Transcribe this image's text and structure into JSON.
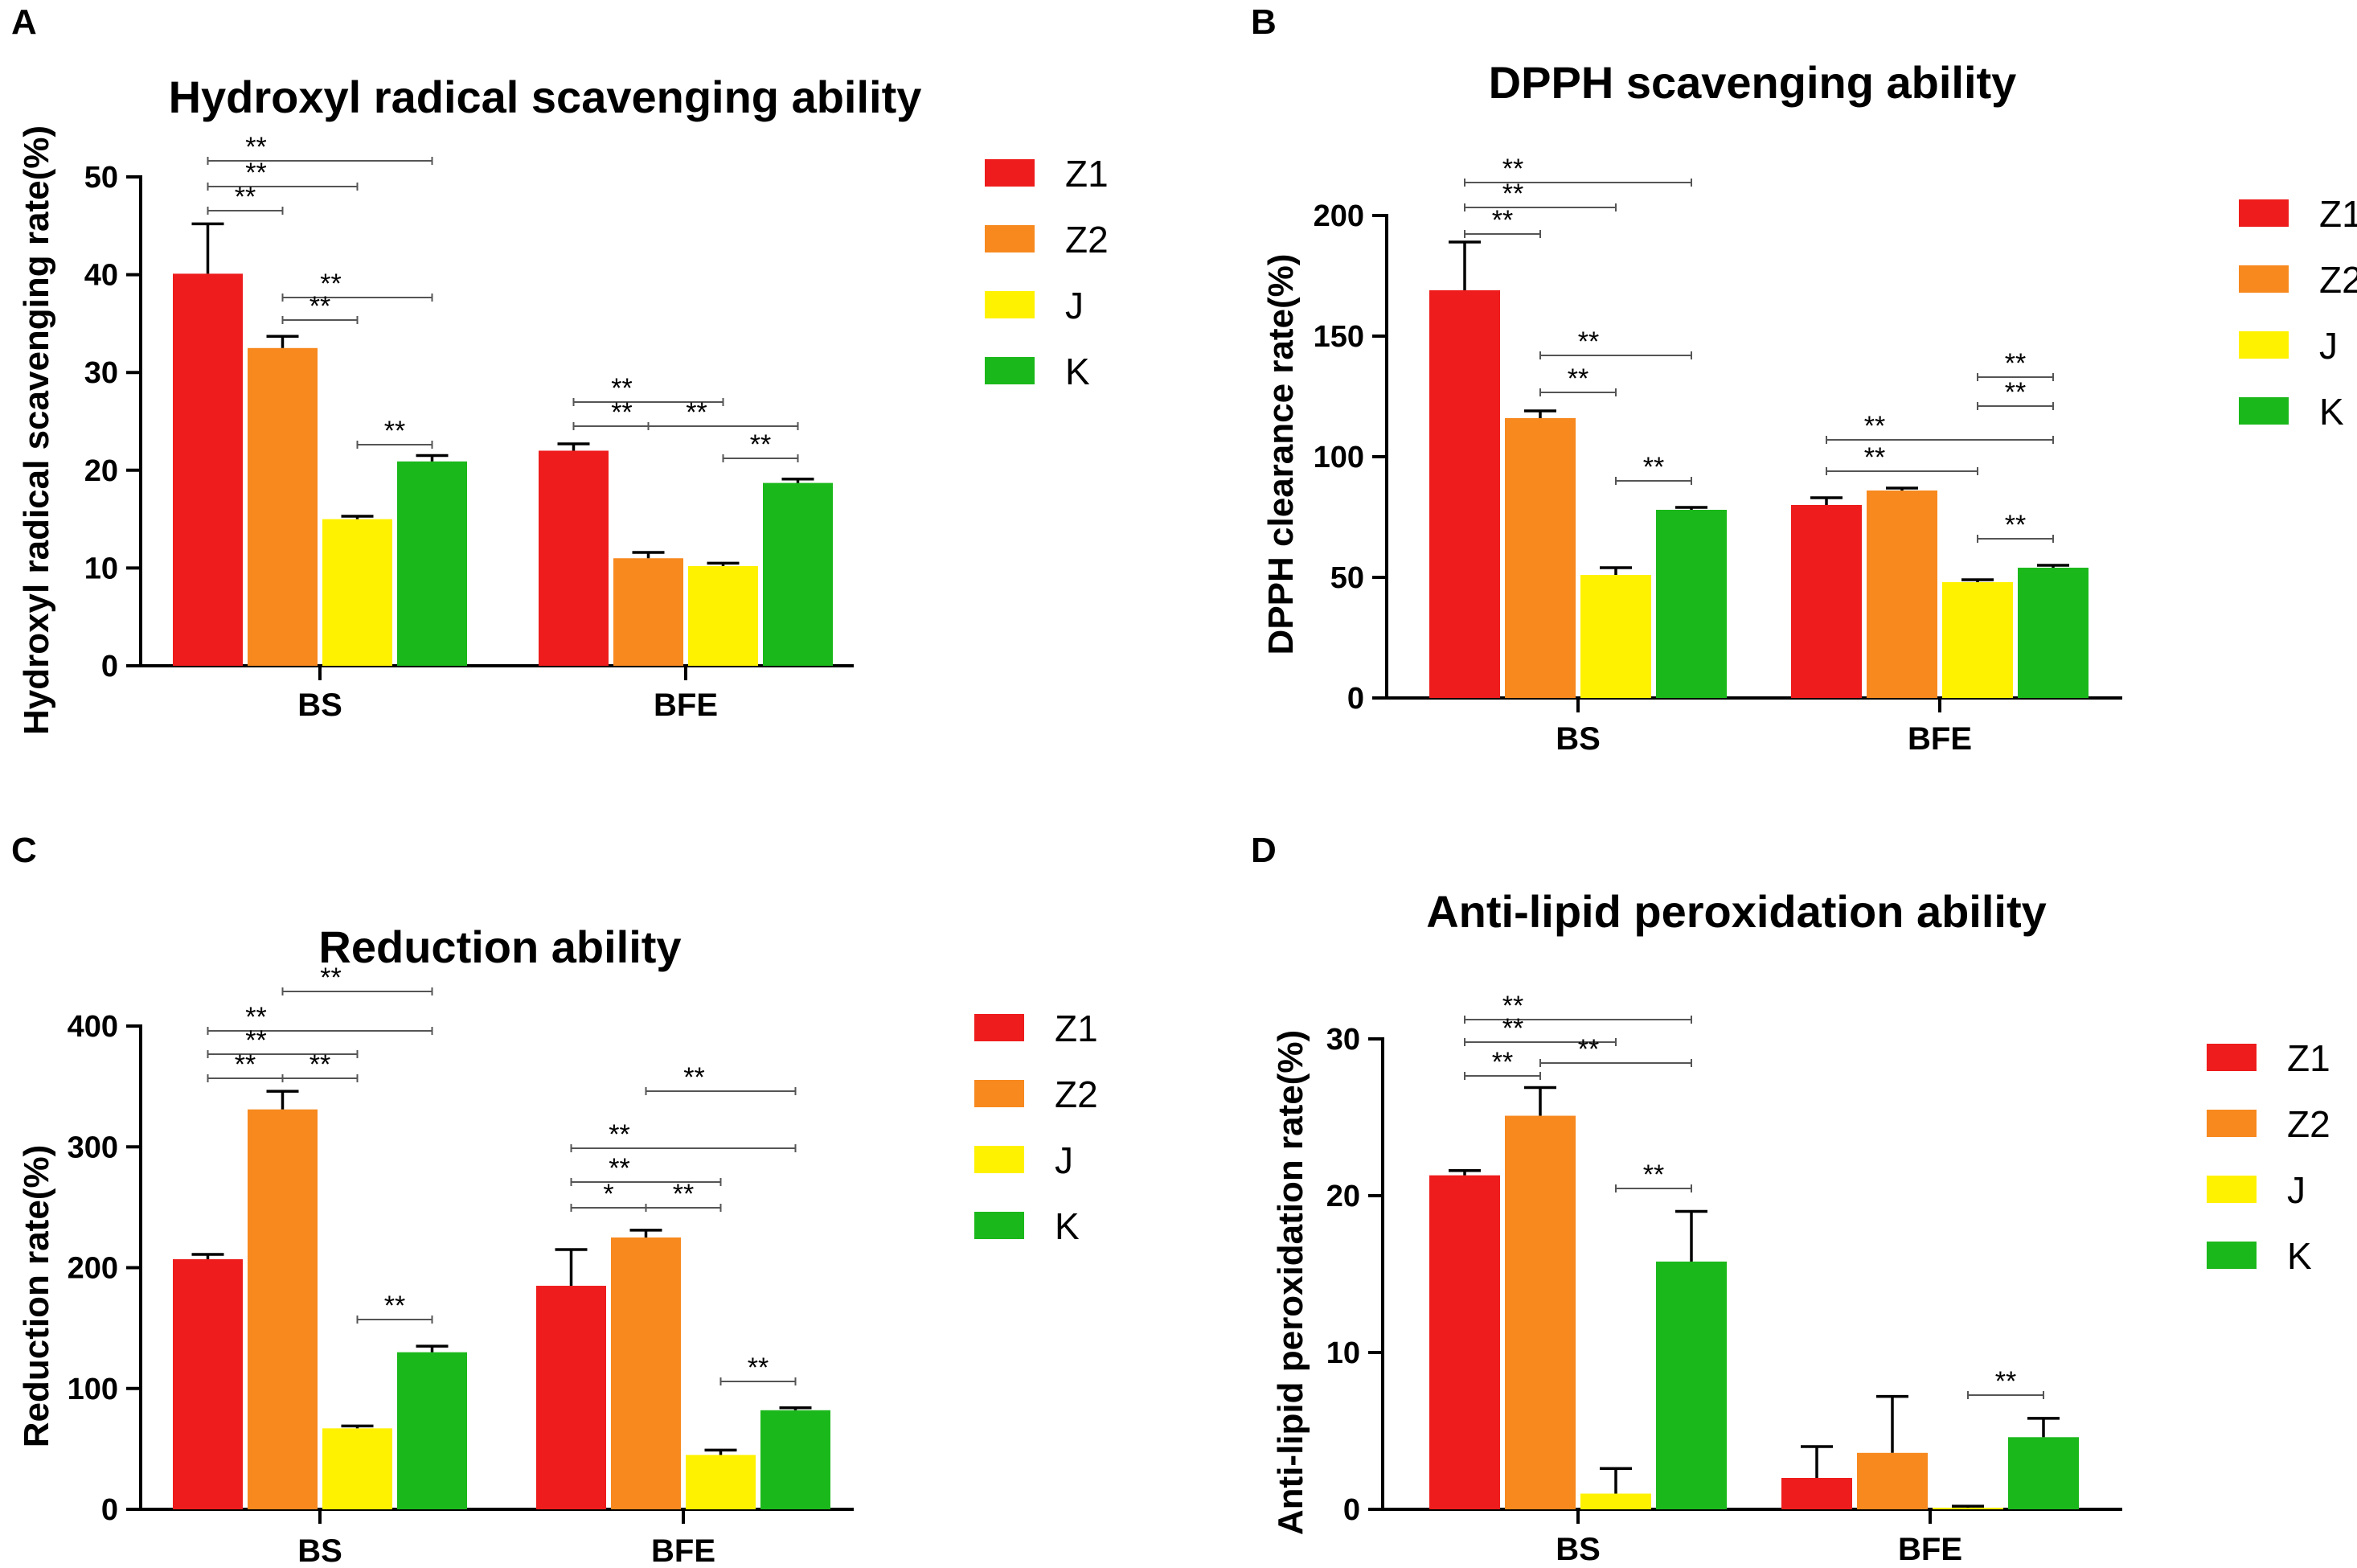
{
  "colors": {
    "Z1": "#ee1c1c",
    "Z2": "#f7891f",
    "J": "#fff200",
    "K": "#1bb81b"
  },
  "chart_data": [
    {
      "panel": "A",
      "type": "bar",
      "title": "Hydroxyl radical scavenging ability",
      "xlabel": "",
      "ylabel": "Hydroxyl radical scavenging rate(%)",
      "categories": [
        "BS",
        "BFE"
      ],
      "ylim": [
        0,
        50
      ],
      "yticks": [
        0,
        10,
        20,
        30,
        40,
        50
      ],
      "series": [
        {
          "name": "Z1",
          "values": [
            40.1,
            22.0
          ],
          "errors": [
            5.1,
            0.7
          ]
        },
        {
          "name": "Z2",
          "values": [
            32.5,
            11.0
          ],
          "errors": [
            1.2,
            0.6
          ]
        },
        {
          "name": "J",
          "values": [
            15.0,
            10.2
          ],
          "errors": [
            0.3,
            0.3
          ]
        },
        {
          "name": "K",
          "values": [
            20.9,
            18.7
          ],
          "errors": [
            0.6,
            0.4
          ]
        }
      ],
      "significance": [
        {
          "category": 0,
          "from": "Z1",
          "to": "K",
          "label": "**"
        },
        {
          "category": 0,
          "from": "Z1",
          "to": "J",
          "label": "**"
        },
        {
          "category": 0,
          "from": "Z1",
          "to": "Z2",
          "label": "**"
        },
        {
          "category": 0,
          "from": "Z2",
          "to": "K",
          "label": "**"
        },
        {
          "category": 0,
          "from": "Z2",
          "to": "J",
          "label": "**"
        },
        {
          "category": 0,
          "from": "J",
          "to": "K",
          "label": "**"
        },
        {
          "category": 1,
          "from": "Z1",
          "to": "J",
          "label": "**"
        },
        {
          "category": 1,
          "from": "Z1",
          "to": "K",
          "label": "**"
        },
        {
          "category": 1,
          "from": "Z2",
          "to": "K",
          "label": "**"
        },
        {
          "category": 1,
          "from": "J",
          "to": "K",
          "label": "**"
        }
      ]
    },
    {
      "panel": "B",
      "type": "bar",
      "title": "DPPH scavenging ability",
      "xlabel": "",
      "ylabel": "DPPH clearance rate(%)",
      "categories": [
        "BS",
        "BFE"
      ],
      "ylim": [
        0,
        200
      ],
      "yticks": [
        0,
        50,
        100,
        150,
        200
      ],
      "series": [
        {
          "name": "Z1",
          "values": [
            169,
            80
          ],
          "errors": [
            20,
            3
          ]
        },
        {
          "name": "Z2",
          "values": [
            116,
            86
          ],
          "errors": [
            3,
            1
          ]
        },
        {
          "name": "J",
          "values": [
            51,
            48
          ],
          "errors": [
            3,
            1
          ]
        },
        {
          "name": "K",
          "values": [
            78,
            54
          ],
          "errors": [
            1,
            1
          ]
        }
      ],
      "significance": [
        {
          "category": 0,
          "from": "Z1",
          "to": "K",
          "label": "**"
        },
        {
          "category": 0,
          "from": "Z1",
          "to": "J",
          "label": "**"
        },
        {
          "category": 0,
          "from": "Z1",
          "to": "Z2",
          "label": "**"
        },
        {
          "category": 0,
          "from": "Z2",
          "to": "K",
          "label": "**"
        },
        {
          "category": 0,
          "from": "Z2",
          "to": "J",
          "label": "**"
        },
        {
          "category": 0,
          "from": "J",
          "to": "K",
          "label": "**"
        },
        {
          "category": 1,
          "from": "J",
          "to": "K",
          "label": "**"
        },
        {
          "category": 1,
          "from": "J",
          "to": "K",
          "label": "**"
        },
        {
          "category": 1,
          "from": "Z1",
          "to": "K",
          "label": "**"
        },
        {
          "category": 1,
          "from": "Z1",
          "to": "J",
          "label": "**"
        },
        {
          "category": 1,
          "from": "J",
          "to": "K",
          "label": "**"
        }
      ]
    },
    {
      "panel": "C",
      "type": "bar",
      "title": "Reduction ability",
      "xlabel": "",
      "ylabel": "Reduction rate(%)",
      "categories": [
        "BS",
        "BFE"
      ],
      "ylim": [
        0,
        400
      ],
      "yticks": [
        0,
        100,
        200,
        300,
        400
      ],
      "series": [
        {
          "name": "Z1",
          "values": [
            207,
            185
          ],
          "errors": [
            4,
            30
          ]
        },
        {
          "name": "Z2",
          "values": [
            331,
            225
          ],
          "errors": [
            15,
            6
          ]
        },
        {
          "name": "J",
          "values": [
            67,
            45
          ],
          "errors": [
            2,
            4
          ]
        },
        {
          "name": "K",
          "values": [
            130,
            82
          ],
          "errors": [
            5,
            2
          ]
        }
      ],
      "significance": [
        {
          "category": 0,
          "from": "Z2",
          "to": "K",
          "label": "**"
        },
        {
          "category": 0,
          "from": "Z1",
          "to": "K",
          "label": "**"
        },
        {
          "category": 0,
          "from": "Z1",
          "to": "J",
          "label": "**"
        },
        {
          "category": 0,
          "from": "Z1",
          "to": "Z2",
          "label": "**"
        },
        {
          "category": 0,
          "from": "Z2",
          "to": "J",
          "label": "**"
        },
        {
          "category": 0,
          "from": "J",
          "to": "K",
          "label": "**"
        },
        {
          "category": 1,
          "from": "Z2",
          "to": "K",
          "label": "**"
        },
        {
          "category": 1,
          "from": "Z1",
          "to": "K",
          "label": "**"
        },
        {
          "category": 1,
          "from": "Z1",
          "to": "J",
          "label": "**"
        },
        {
          "category": 1,
          "from": "Z1",
          "to": "Z2",
          "label": "*"
        },
        {
          "category": 1,
          "from": "Z2",
          "to": "J",
          "label": "**"
        },
        {
          "category": 1,
          "from": "J",
          "to": "K",
          "label": "**"
        }
      ]
    },
    {
      "panel": "D",
      "type": "bar",
      "title": "Anti-lipid peroxidation ability",
      "xlabel": "",
      "ylabel": "Anti-lipid peroxidation rate(%)",
      "categories": [
        "BS",
        "BFE"
      ],
      "ylim": [
        0,
        30
      ],
      "yticks": [
        0,
        10,
        20,
        30
      ],
      "series": [
        {
          "name": "Z1",
          "values": [
            21.3,
            2.0
          ],
          "errors": [
            0.3,
            2.0
          ]
        },
        {
          "name": "Z2",
          "values": [
            25.1,
            3.6
          ],
          "errors": [
            1.8,
            3.6
          ]
        },
        {
          "name": "J",
          "values": [
            1.0,
            0.1
          ],
          "errors": [
            1.6,
            0.1
          ]
        },
        {
          "name": "K",
          "values": [
            15.8,
            4.6
          ],
          "errors": [
            3.2,
            1.2
          ]
        }
      ],
      "significance": [
        {
          "category": 0,
          "from": "Z1",
          "to": "K",
          "label": "**"
        },
        {
          "category": 0,
          "from": "Z1",
          "to": "J",
          "label": "**"
        },
        {
          "category": 0,
          "from": "Z2",
          "to": "K",
          "label": "**"
        },
        {
          "category": 0,
          "from": "Z1",
          "to": "Z2",
          "label": "**"
        },
        {
          "category": 0,
          "from": "J",
          "to": "K",
          "label": "**"
        },
        {
          "category": 1,
          "from": "J",
          "to": "K",
          "label": "**"
        }
      ]
    }
  ]
}
